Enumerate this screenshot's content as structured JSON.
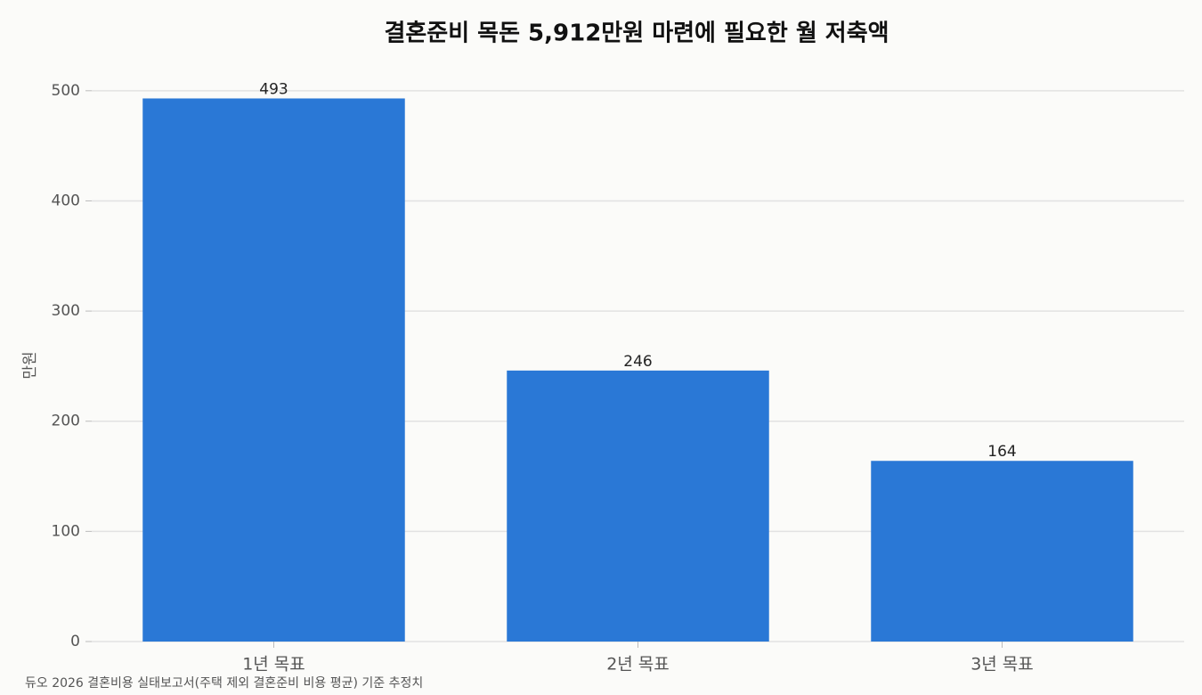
{
  "chart_data": {
    "type": "bar",
    "title": "결혼준비 목돈 5,912만원 마련에 필요한 월 저축액",
    "y_label": "만원",
    "categories": [
      "1년 목표",
      "2년 목표",
      "3년 목표"
    ],
    "values": [
      493,
      246,
      164
    ],
    "color": "#2a78d6",
    "ylim": [
      0,
      517.65
    ],
    "yticks": [
      0,
      100,
      200,
      300,
      400,
      500
    ],
    "grid": true,
    "note": "듀오 2026 결혼비용 실태보고서(주택 제외 결혼준비 비용 평균) 기준 추정치"
  }
}
